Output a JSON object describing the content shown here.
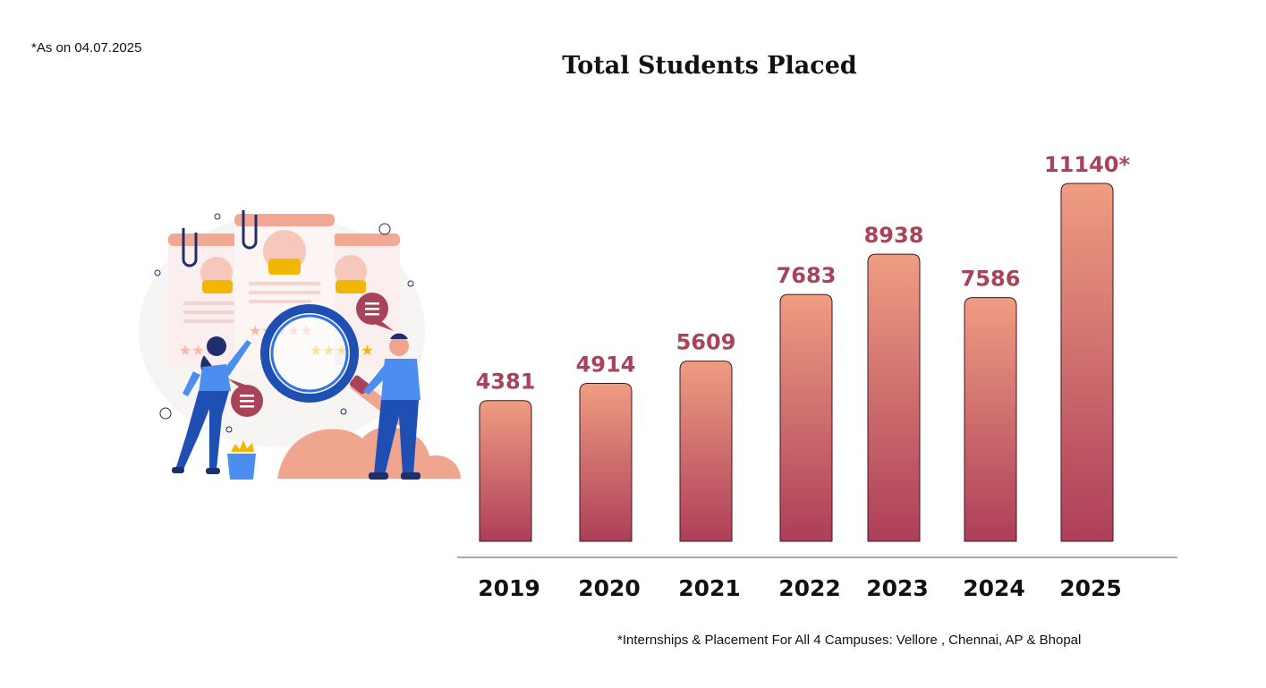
{
  "top_note": "*As on 04.07.2025",
  "footnote": "*Internships & Placement For All 4 Campuses: Vellore , Chennai, AP & Bhopal",
  "colors": {
    "bar_top": "#ef9d82",
    "bar_bottom": "#ad3e59",
    "value_label": "#a8435a",
    "axis": "#555555"
  },
  "chart_data": {
    "type": "bar",
    "title": "Total Students Placed",
    "categories": [
      "2019",
      "2020",
      "2021",
      "2022",
      "2023",
      "2024",
      "2025"
    ],
    "values": [
      4381,
      4914,
      5609,
      7683,
      8938,
      7586,
      11140
    ],
    "data_labels": [
      "4381",
      "4914",
      "5609",
      "7683",
      "8938",
      "7586",
      "11140*"
    ],
    "xlabel": "",
    "ylabel": "",
    "grid": false,
    "legend": "none"
  },
  "illustration": {
    "icons": [
      "resume-card-icon",
      "magnifying-glass-icon",
      "chat-bubble-icon",
      "person-icon",
      "star-rating-icon",
      "bucket-icon"
    ]
  }
}
